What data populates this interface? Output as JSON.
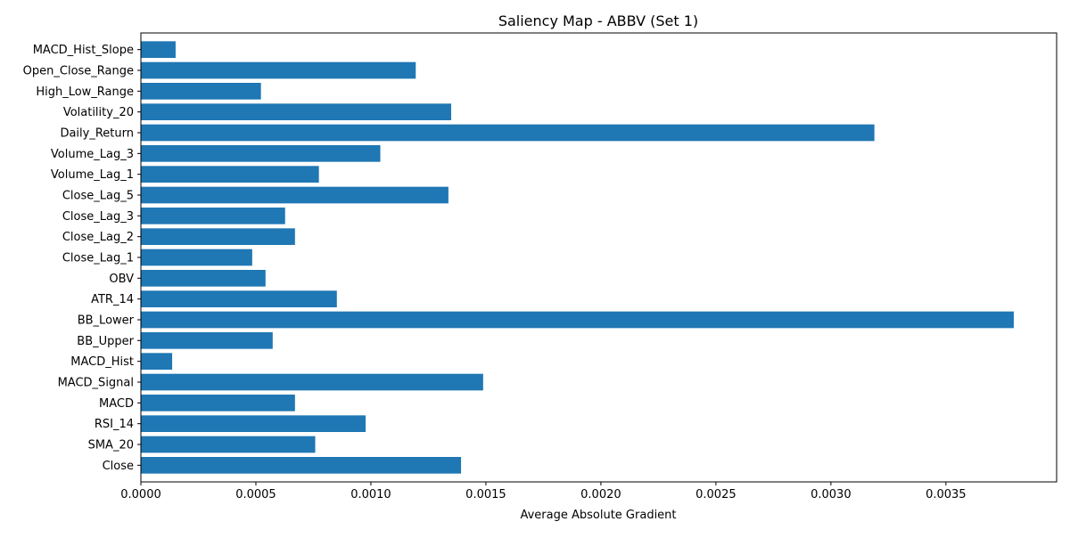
{
  "chart_data": {
    "type": "bar",
    "orientation": "horizontal",
    "title": "Saliency Map - ABBV (Set 1)",
    "xlabel": "Average Absolute Gradient",
    "ylabel": "",
    "xlim": [
      0,
      0.0039813
    ],
    "xticks": [
      0,
      0.0005,
      0.001,
      0.0015,
      0.002,
      0.0025,
      0.003,
      0.0035
    ],
    "xtick_labels": [
      "0.0000",
      "0.0005",
      "0.0010",
      "0.0015",
      "0.0020",
      "0.0025",
      "0.0030",
      "0.0035"
    ],
    "grid": false,
    "bar_color": "#1f77b4",
    "categories": [
      "Close",
      "SMA_20",
      "RSI_14",
      "MACD",
      "MACD_Signal",
      "MACD_Hist",
      "BB_Upper",
      "BB_Lower",
      "ATR_14",
      "OBV",
      "Close_Lag_1",
      "Close_Lag_2",
      "Close_Lag_3",
      "Close_Lag_5",
      "Volume_Lag_1",
      "Volume_Lag_3",
      "Daily_Return",
      "Volatility_20",
      "High_Low_Range",
      "Open_Close_Range",
      "MACD_Hist_Slope"
    ],
    "values": [
      0.001392,
      0.000758,
      0.000977,
      0.00067,
      0.001488,
      0.000136,
      0.000573,
      0.003795,
      0.000852,
      0.000542,
      0.000484,
      0.00067,
      0.000627,
      0.001337,
      0.000774,
      0.001041,
      0.003189,
      0.001349,
      0.000522,
      0.001195,
      0.000151
    ]
  }
}
